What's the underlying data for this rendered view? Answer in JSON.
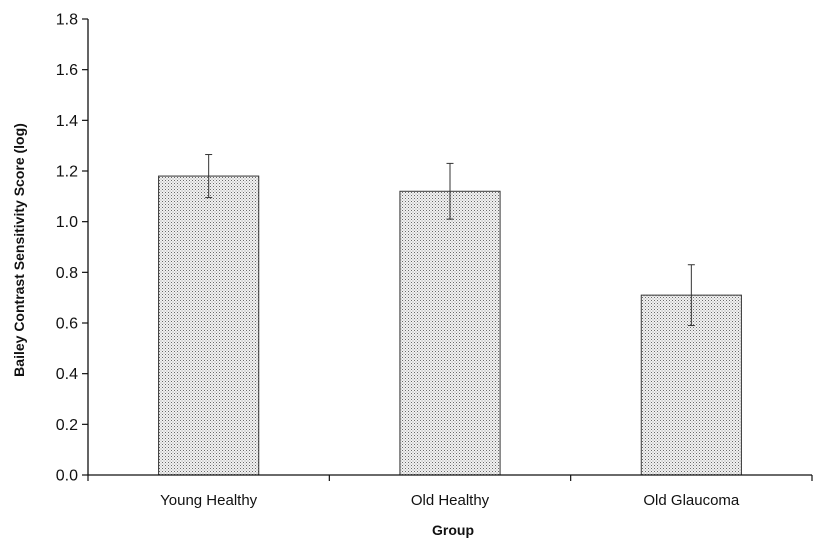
{
  "chart_data": {
    "type": "bar",
    "title": "",
    "xlabel": "Group",
    "ylabel": "Bailey Contrast Sensitivity Score (log)",
    "categories": [
      "Young Healthy",
      "Old Healthy",
      "Old Glaucoma"
    ],
    "values": [
      1.18,
      1.12,
      0.71
    ],
    "error": [
      0.085,
      0.11,
      0.12
    ],
    "ylim": [
      0,
      1.8
    ],
    "yticks": [
      "0.0",
      "0.2",
      "0.4",
      "0.6",
      "0.8",
      "1.0",
      "1.2",
      "1.4",
      "1.6",
      "1.8"
    ],
    "grid": false,
    "legend": "none",
    "bar_fill": "dotted light gray"
  }
}
